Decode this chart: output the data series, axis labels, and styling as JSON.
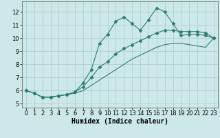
{
  "title": "",
  "xlabel": "Humidex (Indice chaleur)",
  "ylabel": "",
  "bg_color": "#cce8e8",
  "grid_color": "#b0d0d0",
  "line_color": "#2d7d6e",
  "xlim": [
    -0.5,
    23.5
  ],
  "ylim": [
    4.7,
    12.8
  ],
  "xticks": [
    0,
    1,
    2,
    3,
    4,
    5,
    6,
    7,
    8,
    9,
    10,
    11,
    12,
    13,
    14,
    15,
    16,
    17,
    18,
    19,
    20,
    21,
    22,
    23
  ],
  "yticks": [
    5,
    6,
    7,
    8,
    9,
    10,
    11,
    12
  ],
  "line1_x": [
    0,
    1,
    2,
    3,
    4,
    5,
    6,
    7,
    8,
    9,
    10,
    11,
    12,
    13,
    14,
    15,
    16,
    17,
    18,
    19,
    20,
    21,
    22,
    23
  ],
  "line1_y": [
    6.0,
    5.8,
    5.5,
    5.5,
    5.6,
    5.7,
    5.9,
    6.6,
    7.6,
    9.6,
    10.3,
    11.3,
    11.6,
    11.1,
    10.6,
    11.4,
    12.3,
    12.0,
    11.1,
    10.2,
    10.3,
    10.3,
    10.2,
    10.0
  ],
  "line2_x": [
    0,
    1,
    2,
    3,
    4,
    5,
    6,
    7,
    8,
    9,
    10,
    11,
    12,
    13,
    14,
    15,
    16,
    17,
    18,
    19,
    20,
    21,
    22,
    23
  ],
  "line2_y": [
    6.0,
    5.8,
    5.5,
    5.5,
    5.6,
    5.7,
    5.9,
    6.3,
    7.0,
    7.8,
    8.2,
    8.8,
    9.2,
    9.5,
    9.8,
    10.1,
    10.4,
    10.6,
    10.6,
    10.5,
    10.5,
    10.5,
    10.4,
    10.0
  ],
  "line3_x": [
    0,
    1,
    2,
    3,
    4,
    5,
    6,
    7,
    8,
    9,
    10,
    11,
    12,
    13,
    14,
    15,
    16,
    17,
    18,
    19,
    20,
    21,
    22,
    23
  ],
  "line3_y": [
    6.0,
    5.8,
    5.5,
    5.5,
    5.6,
    5.7,
    5.8,
    6.0,
    6.4,
    6.8,
    7.2,
    7.6,
    8.0,
    8.4,
    8.7,
    9.0,
    9.3,
    9.5,
    9.6,
    9.6,
    9.5,
    9.4,
    9.3,
    10.0
  ],
  "marker": "D",
  "markersize": 2.5,
  "linewidth": 0.8,
  "xlabel_fontsize": 7,
  "tick_fontsize": 6
}
